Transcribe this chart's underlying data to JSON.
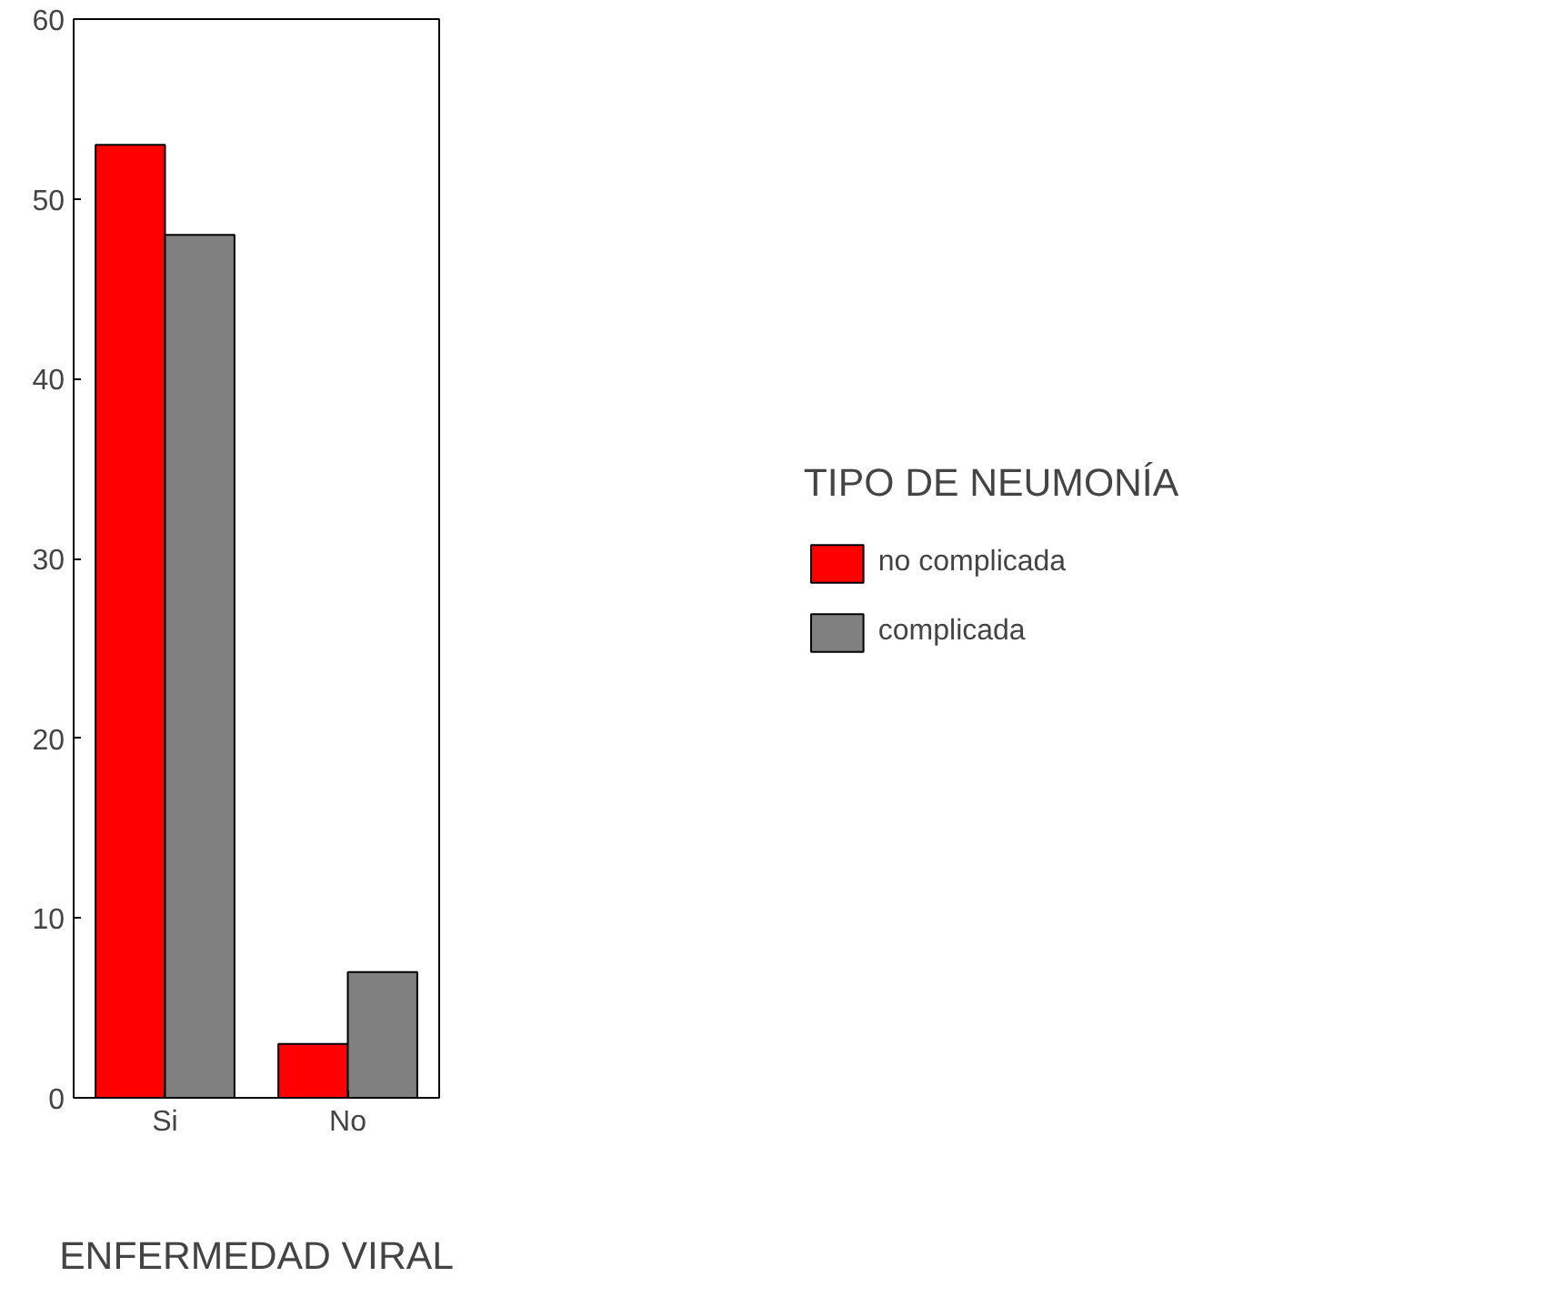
{
  "chart_data": {
    "type": "bar",
    "categories": [
      "Si",
      "No"
    ],
    "xlabel": "ENFERMEDAD VIRAL",
    "legend_title": "TIPO DE NEUMONÍA",
    "series": [
      {
        "name": "no complicada",
        "color": "#ff0000",
        "values": [
          53,
          3
        ]
      },
      {
        "name": "complicada",
        "color": "#808080",
        "values": [
          48,
          7
        ]
      }
    ],
    "ylim": [
      0,
      60
    ],
    "yticks": [
      0,
      10,
      20,
      30,
      40,
      50,
      60
    ],
    "grid": false,
    "legend": "right"
  }
}
